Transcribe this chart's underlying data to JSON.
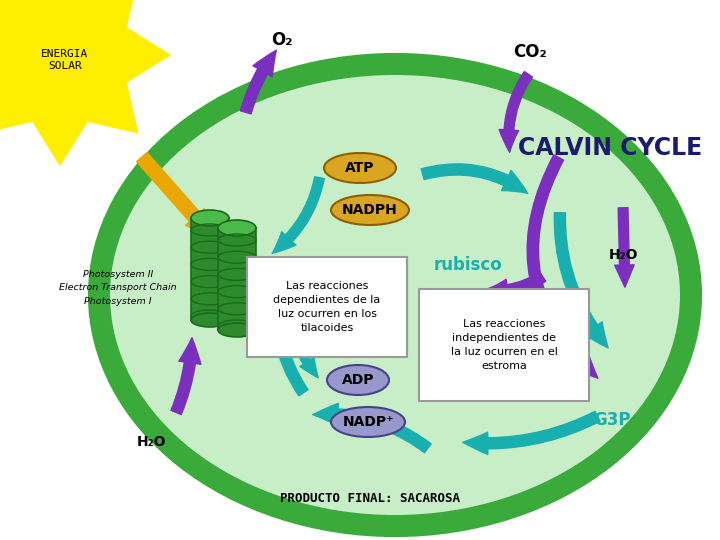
{
  "bg_color": "#ffffff",
  "cell_outer_color": "#3aaa3a",
  "cell_inner_color": "#c8eec8",
  "title_energia": "ENERGIA\nSOLAR",
  "title_calvin": "CALVIN CYCLE",
  "text_photosystem": "Photosystem II\nElectron Transport Chain\nPhotosystem I",
  "text_box1": "Las reacciones\ndependientes de la\nluz ocurren en los\ntilacoides",
  "text_box2": "Las reacciones\nindependientes de\nla luz ocurren en el\nestroma",
  "text_producto": "PRODUCTO FINAL: SACAROSA",
  "label_o2": "O₂",
  "label_co2": "CO₂",
  "label_atp": "ATP",
  "label_nadph": "NADPH",
  "label_adp": "ADP",
  "label_nadp": "NADP⁺",
  "label_h2o_top": "H₂O",
  "label_h2o_bot": "H₂O",
  "label_rubisco": "rubisco",
  "label_g3p": "G3P",
  "arrow_purple": "#7b2fbe",
  "arrow_teal": "#1aafaf",
  "arrow_yellow": "#e8a800",
  "atp_color": "#daa520",
  "nadph_color": "#daa520",
  "adp_color": "#9898cc",
  "nadp_color": "#9898cc",
  "thylakoid_color": "#2d8b2d",
  "rubisco_color": "#1aafaf",
  "sun_color": "#ffee00"
}
